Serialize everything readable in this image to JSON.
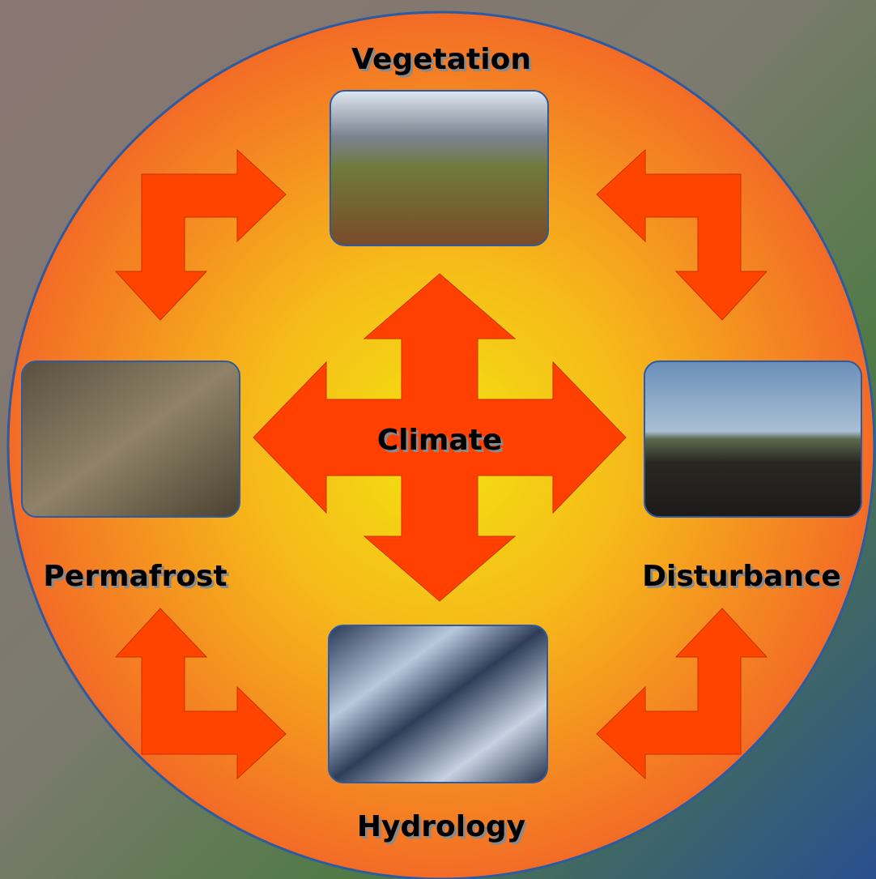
{
  "center": {
    "label": "Climate"
  },
  "nodes": [
    {
      "label": "Vegetation"
    },
    {
      "label": "Permafrost"
    },
    {
      "label": "Disturbance"
    },
    {
      "label": "Hydrology"
    }
  ]
}
